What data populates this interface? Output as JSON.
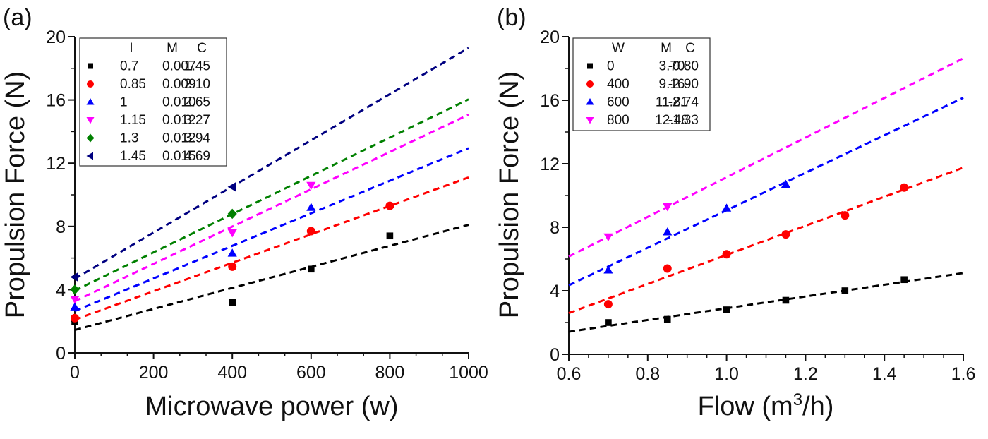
{
  "chart_data": [
    {
      "panel_label": "(a)",
      "type": "scatter",
      "title": "",
      "xlabel": "Microwave power (w)",
      "ylabel": "Propulsion Force (N)",
      "xlim": [
        0,
        1000
      ],
      "ylim": [
        0,
        20
      ],
      "xticks": [
        0,
        200,
        400,
        600,
        800,
        1000
      ],
      "yticks": [
        0,
        4,
        8,
        12,
        16,
        20
      ],
      "grid": false,
      "fit": "linear dashed lines y = M*x + C",
      "legend": {
        "position": "top-left",
        "headers": [
          "I",
          "M",
          "C"
        ],
        "rows": [
          {
            "I": "0.7",
            "M": "0.007",
            "C": "1.45"
          },
          {
            "I": "0.85",
            "M": "0.009",
            "C": "2.10"
          },
          {
            "I": "1",
            "M": "0.010",
            "C": "2.65"
          },
          {
            "I": "1.15",
            "M": "0.012",
            "C": "3.27"
          },
          {
            "I": "1.3",
            "M": "0.012",
            "C": "3.94"
          },
          {
            "I": "1.45",
            "M": "0.015",
            "C": "4.69"
          }
        ]
      },
      "series": [
        {
          "name": "0.7",
          "marker": "square",
          "color": "#000000",
          "slope": 0.00665,
          "intercept": 1.45,
          "x": [
            0,
            400,
            600,
            800
          ],
          "y": [
            2.0,
            3.2,
            5.3,
            7.4
          ]
        },
        {
          "name": "0.85",
          "marker": "circle",
          "color": "#ff0000",
          "slope": 0.009,
          "intercept": 2.1,
          "x": [
            0,
            400,
            600,
            800
          ],
          "y": [
            2.2,
            5.45,
            7.7,
            9.3
          ]
        },
        {
          "name": "1",
          "marker": "triangle-up",
          "color": "#0000ff",
          "slope": 0.0103,
          "intercept": 2.65,
          "x": [
            0,
            400,
            600
          ],
          "y": [
            2.9,
            6.3,
            9.2
          ]
        },
        {
          "name": "1.15",
          "marker": "triangle-down",
          "color": "#ff00ff",
          "slope": 0.0118,
          "intercept": 3.27,
          "x": [
            0,
            400,
            600
          ],
          "y": [
            3.4,
            7.6,
            10.6
          ]
        },
        {
          "name": "1.3",
          "marker": "diamond",
          "color": "#008000",
          "slope": 0.0121,
          "intercept": 3.94,
          "x": [
            0,
            400
          ],
          "y": [
            4.0,
            8.8
          ]
        },
        {
          "name": "1.45",
          "marker": "triangle-left",
          "color": "#000080",
          "slope": 0.0146,
          "intercept": 4.69,
          "x": [
            0,
            400
          ],
          "y": [
            4.8,
            10.5
          ]
        }
      ]
    },
    {
      "panel_label": "(b)",
      "type": "scatter",
      "title": "",
      "xlabel": "Flow (m",
      "xlabel_sup": "3",
      "xlabel_tail": "/h)",
      "ylabel": "Propulsion Force (N)",
      "xlim": [
        0.6,
        1.6
      ],
      "ylim": [
        0,
        20
      ],
      "xticks": [
        "0.6",
        "0.8",
        "1.0",
        "1.2",
        "1.4",
        "1.6"
      ],
      "yticks": [
        0,
        4,
        8,
        12,
        16,
        20
      ],
      "grid": false,
      "fit": "linear dashed lines y = M*x + C",
      "legend": {
        "position": "top-left",
        "headers": [
          "W",
          "M",
          "C"
        ],
        "rows": [
          {
            "W": "0",
            "M": "3.70",
            "C": "-0.80"
          },
          {
            "W": "400",
            "M": "9.16",
            "C": "-2.90"
          },
          {
            "W": "600",
            "M": "11.81",
            "C": "-2.74"
          },
          {
            "W": "800",
            "M": "12.48",
            "C": "-1.33"
          }
        ]
      },
      "series": [
        {
          "name": "0",
          "marker": "square",
          "color": "#000000",
          "slope": 3.7,
          "intercept": -0.8,
          "x": [
            0.7,
            0.85,
            1.0,
            1.15,
            1.3,
            1.45
          ],
          "y": [
            2.0,
            2.2,
            2.8,
            3.4,
            4.0,
            4.7
          ]
        },
        {
          "name": "400",
          "marker": "circle",
          "color": "#ff0000",
          "slope": 9.16,
          "intercept": -2.9,
          "x": [
            0.7,
            0.85,
            1.0,
            1.15,
            1.3,
            1.45
          ],
          "y": [
            3.15,
            5.4,
            6.3,
            7.55,
            8.75,
            10.5
          ]
        },
        {
          "name": "600",
          "marker": "triangle-up",
          "color": "#0000ff",
          "slope": 11.81,
          "intercept": -2.74,
          "x": [
            0.7,
            0.85,
            1.0,
            1.15
          ],
          "y": [
            5.3,
            7.7,
            9.2,
            10.7
          ]
        },
        {
          "name": "800",
          "marker": "triangle-down",
          "color": "#ff00ff",
          "slope": 12.48,
          "intercept": -1.33,
          "x": [
            0.7,
            0.85
          ],
          "y": [
            7.4,
            9.3
          ]
        }
      ]
    }
  ]
}
